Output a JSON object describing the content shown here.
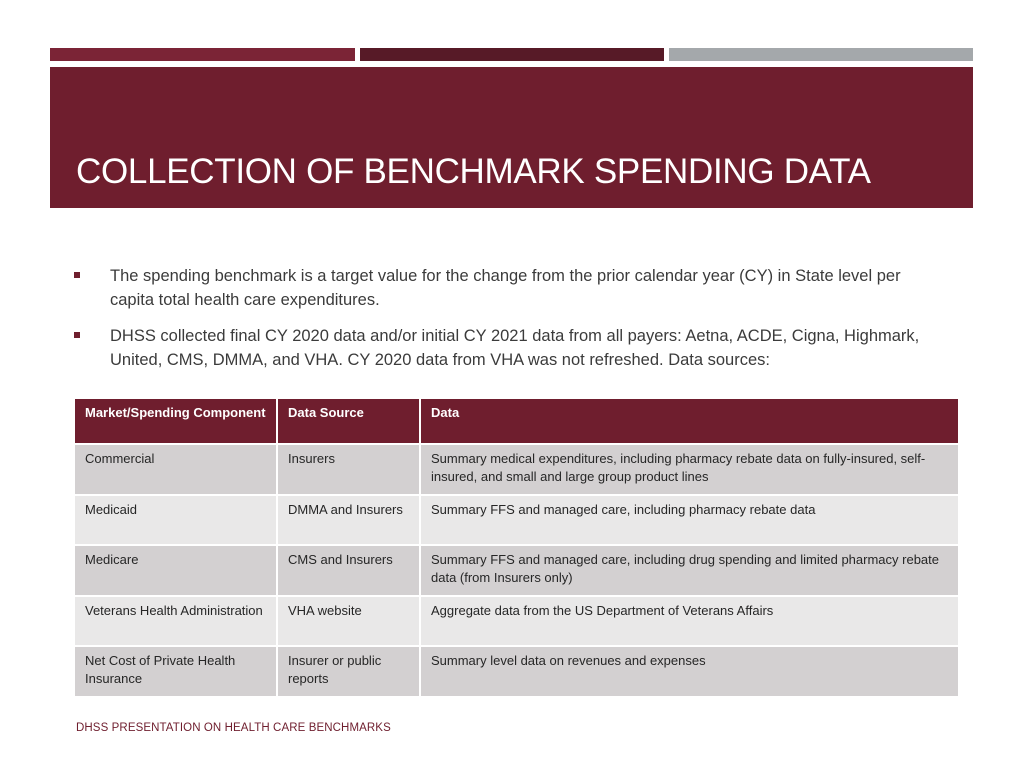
{
  "slide": {
    "title": "COLLECTION OF BENCHMARK SPENDING DATA",
    "bullets": [
      "The spending benchmark is a target value for the change from the prior calendar year (CY) in State level per capita total health care expenditures.",
      "DHSS collected final CY 2020 data and/or initial CY 2021 data from all payers:  Aetna, ACDE, Cigna, Highmark, United, CMS, DMMA, and VHA. CY 2020 data from VHA was not refreshed. Data sources:"
    ],
    "footer": "DHSS PRESENTATION ON HEALTH CARE BENCHMARKS"
  },
  "table": {
    "headers": [
      "Market/Spending Component",
      "Data Source",
      "Data"
    ],
    "rows": [
      [
        "Commercial",
        "Insurers",
        "Summary medical expenditures, including pharmacy rebate data on fully-insured, self-insured, and small and large group product lines"
      ],
      [
        "Medicaid",
        "DMMA and Insurers",
        "Summary FFS and managed care, including pharmacy rebate data"
      ],
      [
        "Medicare",
        "CMS and Insurers",
        "Summary FFS and managed care, including drug spending and limited pharmacy rebate data (from Insurers only)"
      ],
      [
        "Veterans Health Administration",
        "VHA website",
        "Aggregate data from the US Department of Veterans Affairs"
      ],
      [
        "Net Cost of Private Health Insurance",
        "Insurer or public reports",
        "Summary level data on revenues and expenses"
      ]
    ]
  },
  "colors": {
    "primary": "#6f1e2e",
    "accent_dark": "#571a27",
    "accent_gray": "#a4a8ab",
    "row_odd": "#d3d0d1",
    "row_even": "#e9e8e8"
  }
}
